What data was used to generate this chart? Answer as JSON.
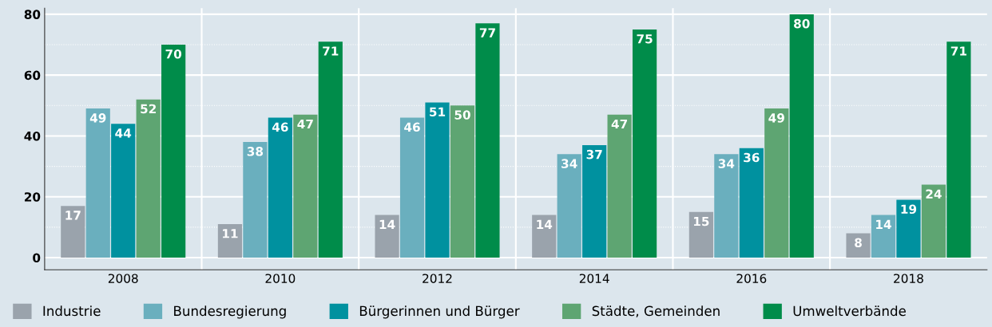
{
  "chart_data": {
    "type": "bar",
    "categories": [
      "2008",
      "2010",
      "2012",
      "2014",
      "2016",
      "2018"
    ],
    "series": [
      {
        "name": "Industrie",
        "color": "#9aa3ac",
        "values": [
          17,
          11,
          14,
          14,
          15,
          8
        ]
      },
      {
        "name": "Bundesregierung",
        "color": "#6aafbe",
        "values": [
          49,
          38,
          46,
          34,
          34,
          14
        ]
      },
      {
        "name": "Bürgerinnen und Bürger",
        "color": "#00919f",
        "values": [
          44,
          46,
          51,
          37,
          36,
          19
        ]
      },
      {
        "name": "Städte, Gemeinden",
        "color": "#5ea572",
        "values": [
          52,
          47,
          50,
          47,
          49,
          24
        ]
      },
      {
        "name": "Umweltverbände",
        "color": "#008c4a",
        "values": [
          70,
          71,
          77,
          75,
          80,
          71
        ]
      }
    ],
    "ylim": [
      0,
      82
    ],
    "yticks": [
      0,
      {
        "value": 10,
        "label": null
      },
      20,
      {
        "value": 30,
        "label": null
      },
      40,
      {
        "value": 50,
        "label": null
      },
      60,
      {
        "value": 70,
        "label": null
      },
      80
    ],
    "grid": true,
    "legend": "bottom",
    "data_labels": true
  }
}
